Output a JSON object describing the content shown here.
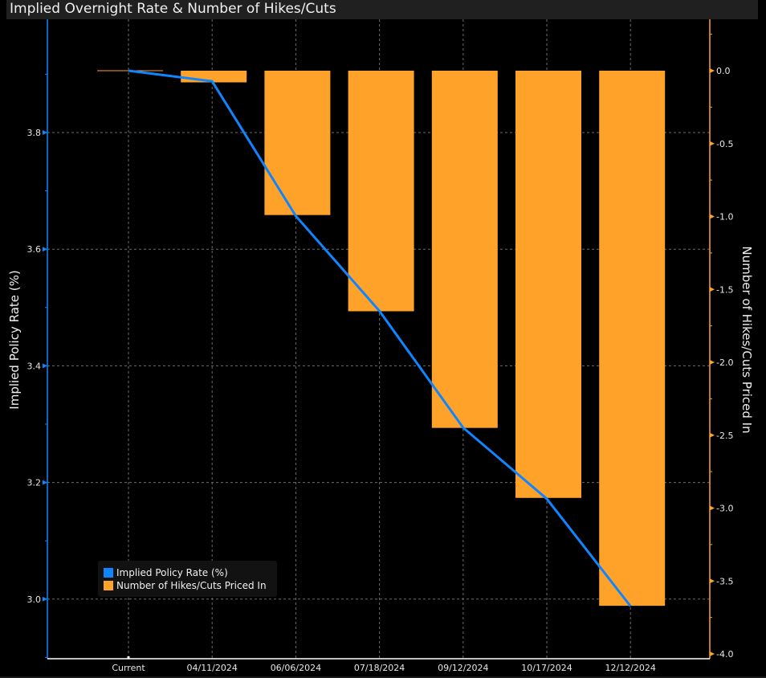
{
  "title": "Implied Overnight Rate & Number of Hikes/Cuts",
  "colors": {
    "line": "#0f85ff",
    "bars": "#ffa22a",
    "left_axis": "#0f85ff",
    "right_axis": "#ffa22a",
    "grid": "#6b6b6b",
    "background": "#000000",
    "x_axis": "#ffffff"
  },
  "legend": {
    "placement": "bottom-left",
    "items": [
      {
        "label": "Implied Policy Rate (%)",
        "color": "#0f85ff"
      },
      {
        "label": "Number of Hikes/Cuts Priced In",
        "color": "#ffa22a"
      }
    ]
  },
  "chart_data": {
    "type": "bar",
    "title": "Implied Overnight Rate & Number of Hikes/Cuts",
    "categories": [
      "Current",
      "04/11/2024",
      "06/06/2024",
      "07/18/2024",
      "09/12/2024",
      "10/17/2024",
      "12/12/2024"
    ],
    "series": [
      {
        "name": "Implied Policy Rate (%)",
        "type": "line",
        "axis": "left",
        "values": [
          3.906,
          3.888,
          3.657,
          3.494,
          3.294,
          3.172,
          2.988
        ]
      },
      {
        "name": "Number of Hikes/Cuts Priced In",
        "type": "bar",
        "axis": "right",
        "values": [
          0.0,
          -0.08,
          -0.99,
          -1.65,
          -2.45,
          -2.93,
          -3.67
        ]
      }
    ],
    "xlabel": "",
    "ylabel": "Implied Policy Rate (%)",
    "y2label": "Number of Hikes/Cuts Priced In",
    "ylim": [
      2.9,
      3.99
    ],
    "y2lim": [
      -4.0,
      0.35
    ],
    "yticks": [
      3.0,
      3.2,
      3.4,
      3.6,
      3.8
    ],
    "yticks_labels": [
      "3.0",
      "3.2",
      "3.4",
      "3.6",
      "3.8"
    ],
    "y_minor_ticks": [
      2.9,
      3.1,
      3.3,
      3.5,
      3.7,
      3.9
    ],
    "y2ticks": [
      0.0,
      -0.5,
      -1.0,
      -1.5,
      -2.0,
      -2.5,
      -3.0,
      -3.5,
      -4.0
    ],
    "y2ticks_labels": [
      "0.0",
      "-0.5",
      "-1.0",
      "-1.5",
      "-2.0",
      "-2.5",
      "-3.0",
      "-3.5",
      "-4.0"
    ],
    "y2_minor_ticks": [
      0.25,
      -0.25,
      -0.75,
      -1.25,
      -1.75,
      -2.25,
      -2.75,
      -3.25,
      -3.75
    ],
    "grid": true,
    "legend_position": "bottom-left"
  }
}
